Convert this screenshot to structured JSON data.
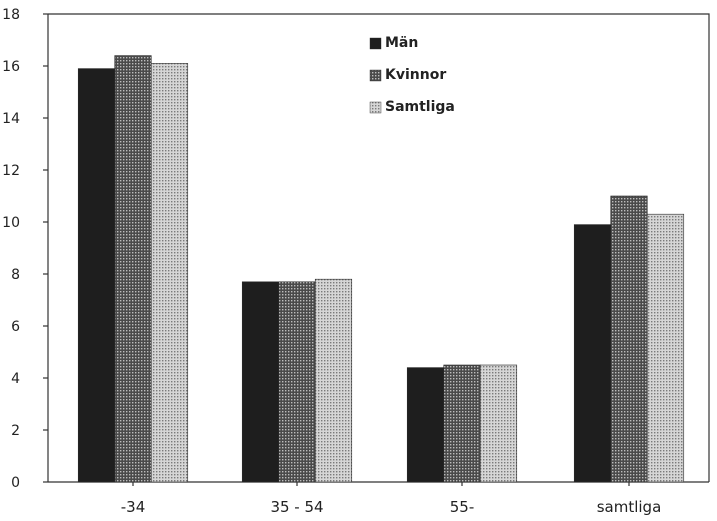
{
  "chart_data": {
    "type": "bar",
    "title": "",
    "xlabel": "",
    "ylabel": "",
    "categories": [
      "-34",
      "35 - 54",
      "55-",
      "samtliga"
    ],
    "series": [
      {
        "name": "Män",
        "values": [
          15.9,
          7.7,
          4.4,
          9.9
        ],
        "color": "#1e1e1e",
        "pattern": "solid"
      },
      {
        "name": "Kvinnor",
        "values": [
          16.4,
          7.7,
          4.5,
          11.0
        ],
        "color": "#6e6e6e",
        "pattern": "dense-dots"
      },
      {
        "name": "Samtliga",
        "values": [
          16.1,
          7.8,
          4.5,
          10.3
        ],
        "color": "#a8a8a8",
        "pattern": "sparse-dots"
      }
    ],
    "ylim": [
      0,
      18
    ],
    "yticks": [
      0,
      2,
      4,
      6,
      8,
      10,
      12,
      14,
      16,
      18
    ],
    "legend_position": "top-center",
    "grid": false
  }
}
